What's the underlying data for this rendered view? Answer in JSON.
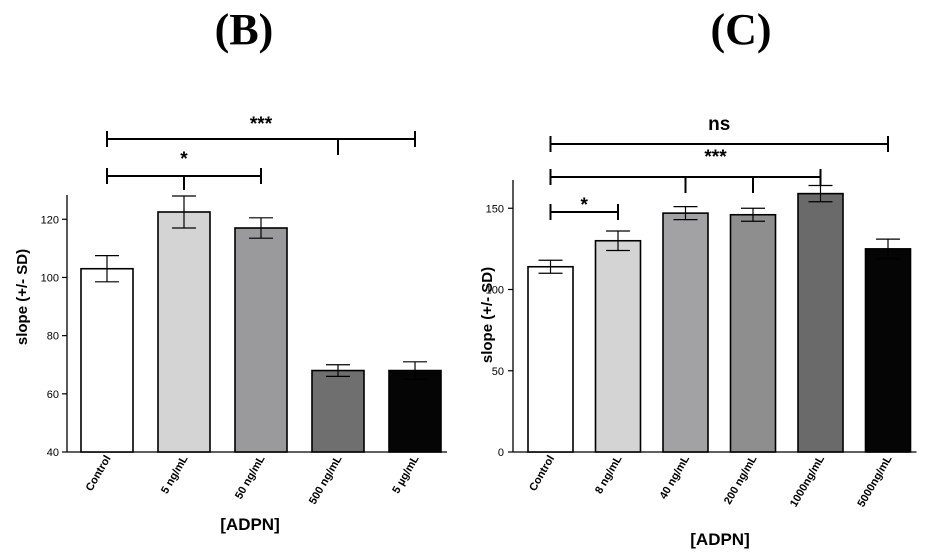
{
  "chart_data": [
    {
      "type": "bar",
      "panel": "(B)",
      "categories": [
        "Control",
        "5 ng/mL",
        "50 ng/mL",
        "500 ng/mL",
        "5 µg/mL"
      ],
      "values": [
        103,
        122.5,
        117,
        68,
        68
      ],
      "errors": [
        4.5,
        5.5,
        3.5,
        2,
        3
      ],
      "colors": [
        "#ffffff",
        "#d4d4d4",
        "#9a9a9c",
        "#6f6f6f",
        "#050505"
      ],
      "ylabel": "slope (+/- SD)",
      "xlabel": "[ADPN]",
      "ylim": [
        40,
        128
      ],
      "yticks": [
        40,
        60,
        80,
        100,
        120
      ],
      "significance": [
        {
          "from": 0,
          "to": 2,
          "label": "*",
          "mid_tick": false
        },
        {
          "from": 0,
          "to": 4,
          "label": "***",
          "mid_tick": true
        }
      ]
    },
    {
      "type": "bar",
      "panel": "(C)",
      "categories": [
        "Control",
        "8 ng/mL",
        "40 ng/mL",
        "200 ng/mL",
        "1000ng/mL",
        "5000ng/mL"
      ],
      "values": [
        114,
        130,
        147,
        146,
        159,
        125
      ],
      "errors": [
        4,
        6,
        4,
        4,
        5,
        6
      ],
      "colors": [
        "#ffffff",
        "#d4d4d4",
        "#a2a2a4",
        "#8e8e8e",
        "#6a6a6a",
        "#050505"
      ],
      "ylabel": "slope (+/- SD)",
      "xlabel": "[ADPN]",
      "ylim": [
        0,
        168
      ],
      "yticks": [
        0,
        50,
        100,
        150
      ],
      "significance": [
        {
          "from": 0,
          "to": 1,
          "label": "*",
          "mid_tick": false
        },
        {
          "from": 0,
          "to": 4,
          "label": "***",
          "ticks": [
            2,
            3
          ]
        },
        {
          "from": 0,
          "to": 5,
          "label": "ns",
          "mid_tick": false
        }
      ]
    }
  ]
}
